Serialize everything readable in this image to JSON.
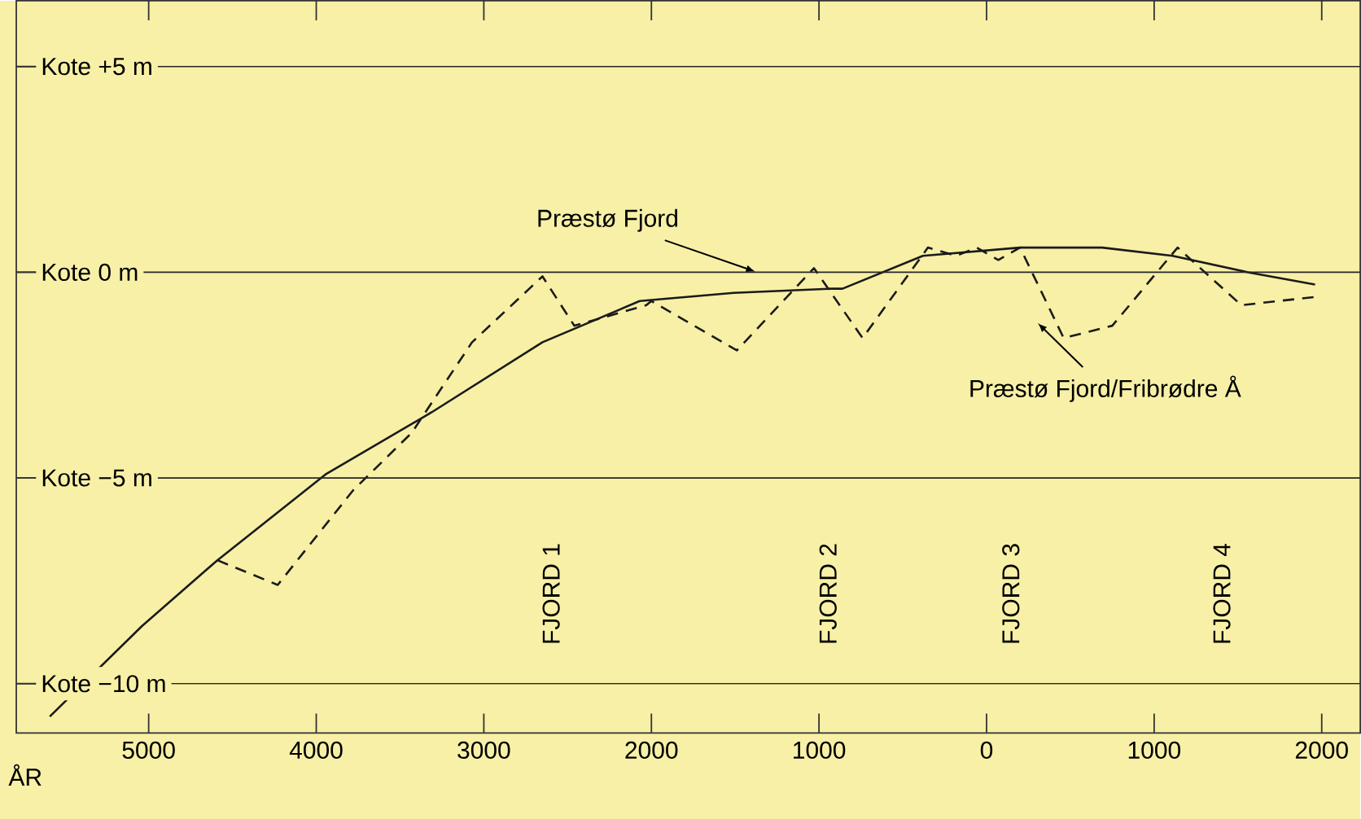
{
  "chart_data": {
    "type": "line",
    "xlabel": "ÅR",
    "series": [
      {
        "name": "Præstø Fjord",
        "color": "#1a1a1a",
        "line_style": "solid",
        "x": [
          -5590,
          -5040,
          -4590,
          -3940,
          -3310,
          -2650,
          -2070,
          -1510,
          -930,
          -860,
          -380,
          200,
          690,
          1110,
          1560,
          1960
        ],
        "values": [
          -10.8,
          -8.6,
          -7.0,
          -4.9,
          -3.4,
          -1.7,
          -0.7,
          -0.5,
          -0.4,
          -0.4,
          0.4,
          0.6,
          0.6,
          0.4,
          0.0,
          -0.3
        ]
      },
      {
        "name": "Præstø Fjord/Fribrødre Å",
        "color": "#1a1a1a",
        "line_style": "dashed",
        "x": [
          -4590,
          -4230,
          -3780,
          -3430,
          -3070,
          -2650,
          -2460,
          -2030,
          -2000,
          -1490,
          -1030,
          -740,
          -350,
          -180,
          -60,
          70,
          200,
          460,
          750,
          1140,
          1520,
          1960
        ],
        "values": [
          -7.0,
          -7.6,
          -5.3,
          -3.9,
          -1.7,
          -0.1,
          -1.3,
          -0.8,
          -0.7,
          -1.9,
          0.1,
          -1.6,
          0.6,
          0.4,
          0.6,
          0.3,
          0.6,
          -1.6,
          -1.3,
          0.6,
          -0.8,
          -0.6
        ]
      }
    ],
    "xlim": [
      -5790,
      2230
    ],
    "ylim": [
      -11.2,
      6.6
    ],
    "xticks": [
      {
        "value": -5000,
        "label": "5000"
      },
      {
        "value": -4000,
        "label": "4000"
      },
      {
        "value": -3000,
        "label": "3000"
      },
      {
        "value": -2000,
        "label": "2000"
      },
      {
        "value": -1000,
        "label": "1000"
      },
      0,
      1000,
      2000
    ],
    "yticks": [
      {
        "value": 5,
        "label": "Kote +5 m"
      },
      {
        "value": 0,
        "label": "Kote 0 m"
      },
      {
        "value": -5,
        "label": "Kote −5 m"
      },
      {
        "value": -10,
        "label": "Kote −10 m"
      }
    ],
    "grid": "y",
    "marker": "none",
    "annotations": [
      "FJORD 1",
      "FJORD 2",
      "FJORD 3",
      "FJORD 4"
    ]
  }
}
